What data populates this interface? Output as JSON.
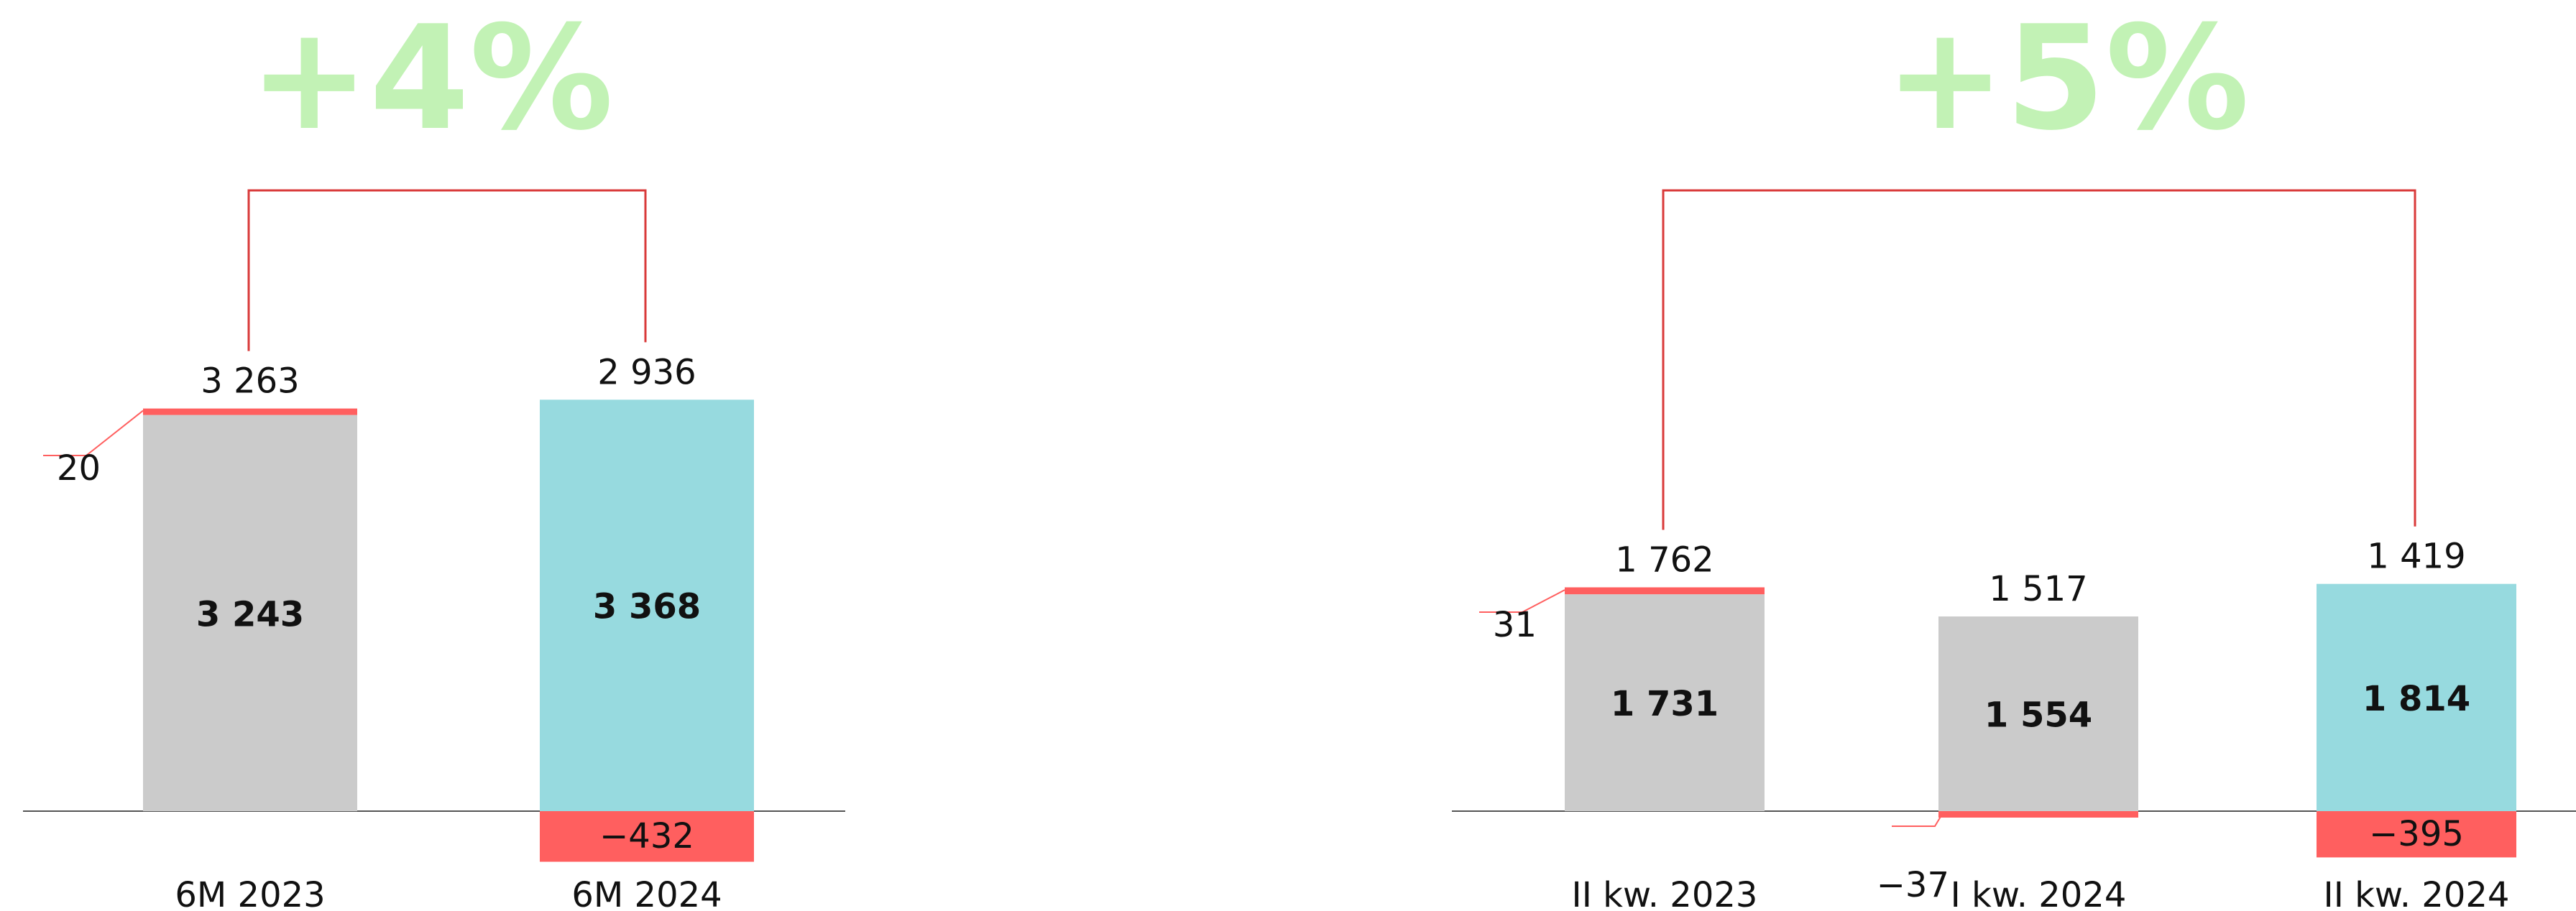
{
  "colors": {
    "growth": "#c2f2b5",
    "bracket": "#d93a3a",
    "highlight": "#ff5f5f",
    "prior_bar": "#cbcbcb",
    "current_bar": "#97dadf",
    "axis": "#555555"
  },
  "chart_data": [
    {
      "type": "bar",
      "growth_label": "+4%",
      "categories": [
        "6M 2023",
        "6M 2024"
      ],
      "main_values": [
        3243,
        3368
      ],
      "main_labels": [
        "3 243",
        "3 368"
      ],
      "adjustments": [
        20,
        -432
      ],
      "adjustment_labels": [
        "20",
        "−432"
      ],
      "total_labels": [
        "3 263",
        "2 936"
      ],
      "totals": [
        3263,
        2936
      ]
    },
    {
      "type": "bar",
      "growth_label": "+5%",
      "categories": [
        "II kw. 2023",
        "I kw. 2024",
        "II kw. 2024"
      ],
      "main_values": [
        1731,
        1554,
        1814
      ],
      "main_labels": [
        "1 731",
        "1 554",
        "1 814"
      ],
      "adjustments": [
        31,
        -37,
        -395
      ],
      "adjustment_labels": [
        "31",
        "−37",
        "−395"
      ],
      "total_labels": [
        "1 762",
        "1 517",
        "1 419"
      ],
      "totals": [
        1762,
        1517,
        1419
      ]
    }
  ]
}
